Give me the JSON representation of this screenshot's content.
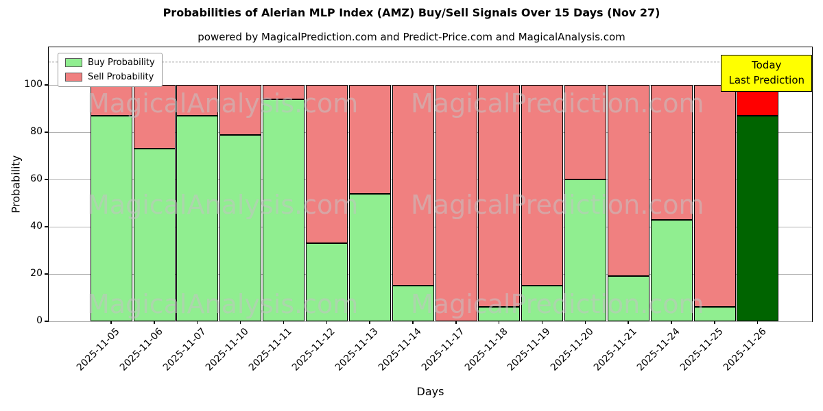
{
  "title": "Probabilities of Alerian MLP Index (AMZ) Buy/Sell Signals Over 15 Days (Nov 27)",
  "subtitle": "powered by MagicalPrediction.com and Predict-Price.com and MagicalAnalysis.com",
  "annotation": {
    "line1": "Today",
    "line2": "Last Prediction",
    "bg_color": "#ffff00"
  },
  "legend": [
    {
      "label": "Buy Probability",
      "color": "#90ee90"
    },
    {
      "label": "Sell Probability",
      "color": "#f08080"
    }
  ],
  "watermarks": [
    "MagicalAnalysis.com",
    "MagicalPrediction.com"
  ],
  "colors": {
    "buy": "#90ee90",
    "sell": "#f08080",
    "buy_today": "#006400",
    "sell_today": "#ff0000",
    "grid": "#b0b0b0",
    "dashed_line": "#7f7f7f"
  },
  "chart_data": {
    "type": "bar",
    "stacked": true,
    "title": "Probabilities of Alerian MLP Index (AMZ) Buy/Sell Signals Over 15 Days (Nov 27)",
    "xlabel": "Days",
    "ylabel": "Probability",
    "categories": [
      "2025-11-05",
      "2025-11-06",
      "2025-11-07",
      "2025-11-10",
      "2025-11-11",
      "2025-11-12",
      "2025-11-13",
      "2025-11-14",
      "2025-11-17",
      "2025-11-18",
      "2025-11-19",
      "2025-11-20",
      "2025-11-21",
      "2025-11-24",
      "2025-11-25",
      "2025-11-26"
    ],
    "series": [
      {
        "name": "Buy Probability",
        "color": "#90ee90",
        "today_color": "#006400",
        "values": [
          87,
          73,
          87,
          79,
          94,
          33,
          54,
          15,
          0,
          6,
          15,
          60,
          19,
          43,
          6,
          87
        ]
      },
      {
        "name": "Sell Probability",
        "color": "#f08080",
        "today_color": "#ff0000",
        "values": [
          13,
          27,
          13,
          21,
          6,
          67,
          46,
          85,
          100,
          94,
          85,
          40,
          81,
          57,
          94,
          13
        ]
      }
    ],
    "yticks": [
      0,
      20,
      40,
      60,
      80,
      100
    ],
    "ylim": [
      0,
      116
    ],
    "dashed_line_y": 110,
    "grid": true,
    "legend_position": "upper left"
  }
}
